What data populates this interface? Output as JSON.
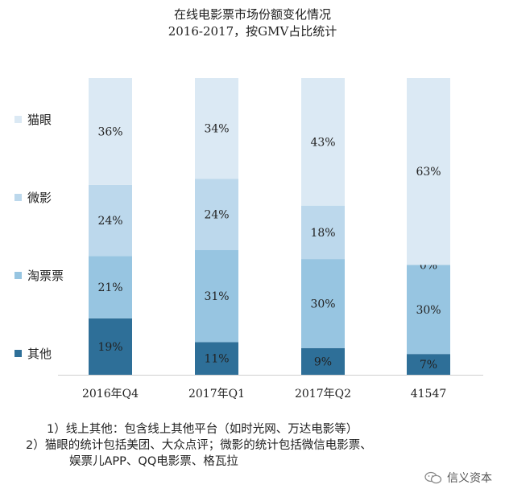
{
  "chart_data": {
    "type": "bar",
    "stacked": true,
    "title": "在线电影票市场份额变化情况",
    "subtitle": "2016-2017，按GMV占比统计",
    "categories": [
      "2016年Q4",
      "2017年Q1",
      "2017年Q2",
      "41547"
    ],
    "series": [
      {
        "name": "其他",
        "values": [
          19,
          11,
          9,
          7
        ],
        "labels": [
          "19%",
          "11%",
          "9%",
          "7%"
        ],
        "color": "#2e6f98"
      },
      {
        "name": "淘票票",
        "values": [
          21,
          31,
          30,
          30
        ],
        "labels": [
          "21%",
          "31%",
          "30%",
          "30%"
        ],
        "color": "#97c5e1"
      },
      {
        "name": "微影",
        "values": [
          24,
          24,
          18,
          0
        ],
        "labels": [
          "24%",
          "24%",
          "18%",
          "0%"
        ],
        "color": "#bcd8ec"
      },
      {
        "name": "猫眼",
        "values": [
          36,
          34,
          43,
          63
        ],
        "labels": [
          "36%",
          "34%",
          "43%",
          "63%"
        ],
        "color": "#dbe9f4"
      }
    ],
    "ylim": [
      0,
      100
    ],
    "legend": "left",
    "grid": false
  },
  "notes": [
    "1）线上其他：包含线上其他平台（如时光网、万达电影等）",
    "2）猫眼的统计包括美团、大众点评；微影的统计包括微信电影票、",
    "娱票儿APP、QQ电影票、格瓦拉"
  ],
  "watermark": "信义资本"
}
